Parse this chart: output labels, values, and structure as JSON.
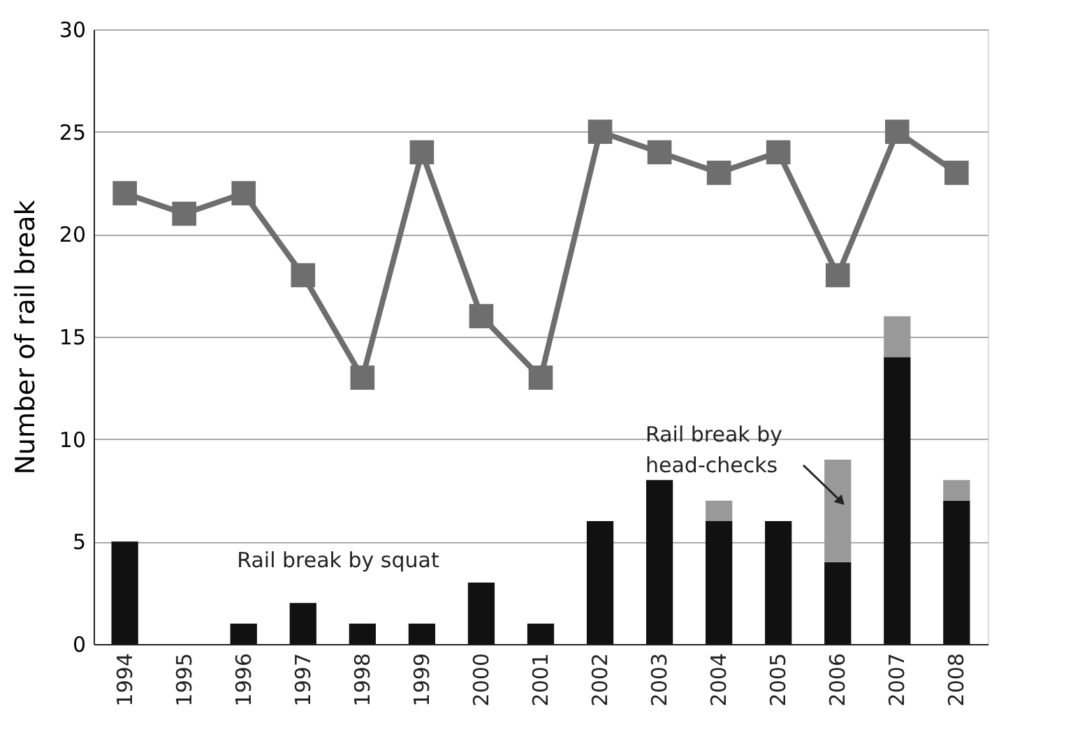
{
  "chart_data": {
    "type": "bar",
    "stacked": true,
    "ylabel": "Number of rail break",
    "categories": [
      "1994",
      "1995",
      "1996",
      "1997",
      "1998",
      "1999",
      "2000",
      "2001",
      "2002",
      "2003",
      "2004",
      "2005",
      "2006",
      "2007",
      "2008"
    ],
    "series": [
      {
        "color": "#111111",
        "values": [
          5,
          0,
          1,
          2,
          1,
          1,
          3,
          1,
          6,
          8,
          6,
          6,
          4,
          14,
          7
        ]
      },
      {
        "color": "#999999",
        "values": [
          0,
          0,
          0,
          0,
          0,
          0,
          0,
          0,
          0,
          0,
          1,
          0,
          5,
          2,
          1
        ]
      },
      {
        "type": "line",
        "color": "#6e6e6e",
        "marker": "square",
        "values": [
          22,
          21,
          22,
          18,
          13,
          24,
          16,
          13,
          25,
          24,
          23,
          24,
          18,
          25,
          23
        ]
      }
    ],
    "ylim": [
      0,
      30
    ],
    "yticks": [
      0,
      5,
      10,
      15,
      20,
      25,
      30
    ],
    "grid": "y",
    "annotations": [
      "Rail break by squat",
      "Rail break by\nhead-checks"
    ]
  }
}
